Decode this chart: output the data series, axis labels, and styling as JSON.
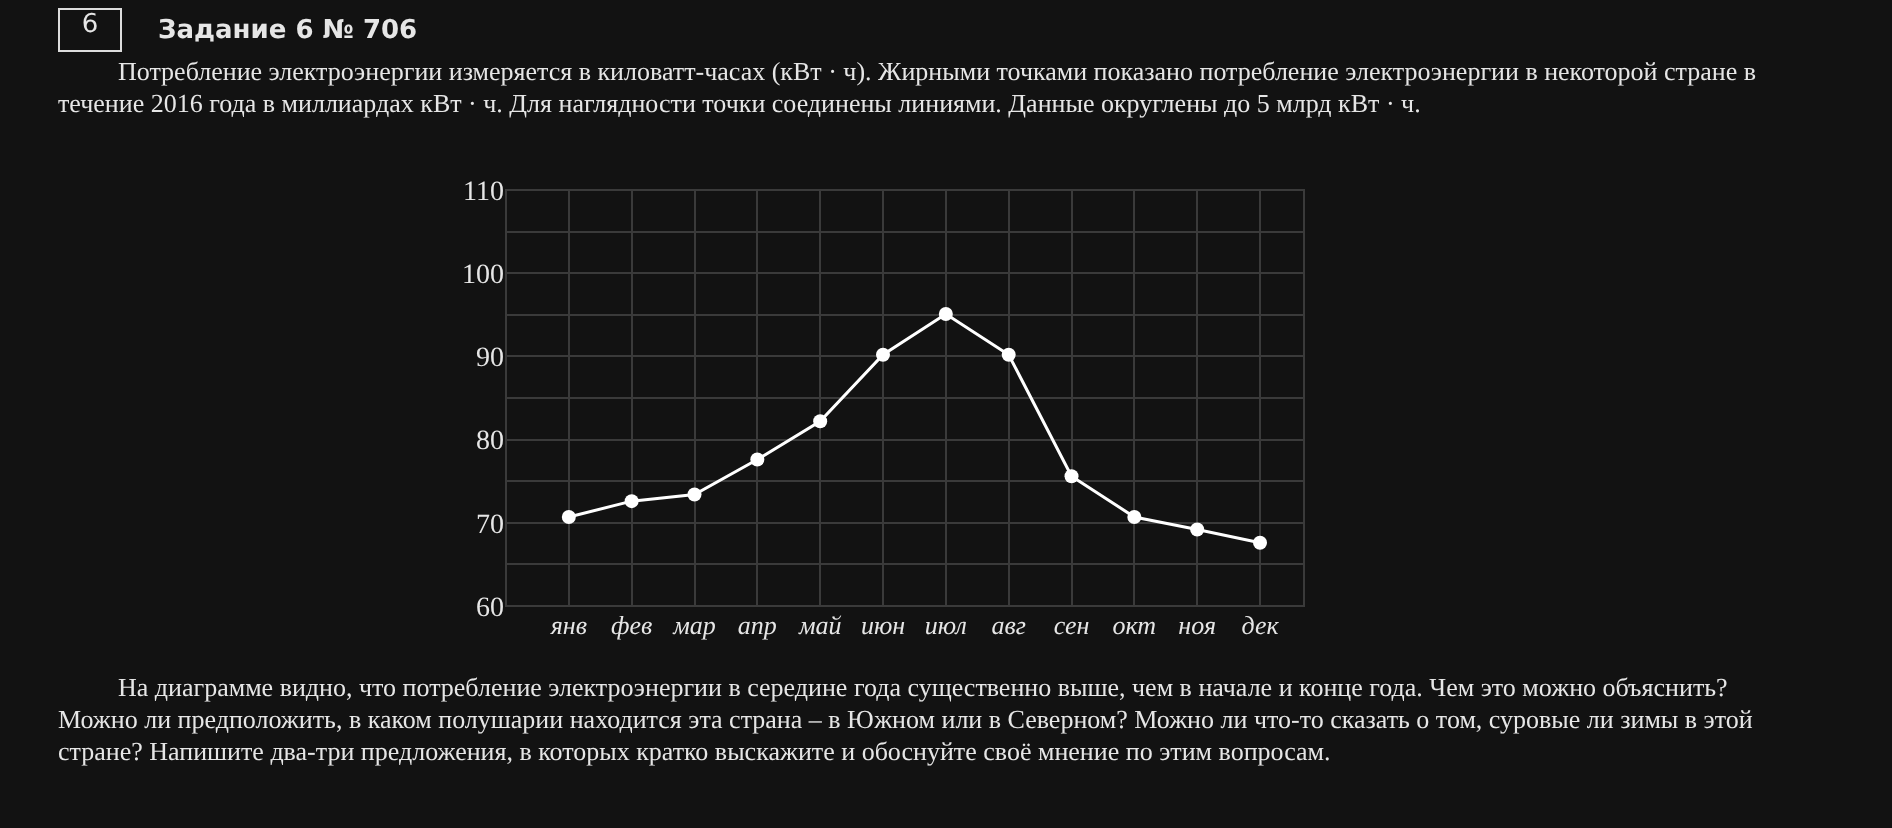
{
  "chart_data": {
    "type": "line",
    "title": "Задание 6 № 706",
    "subtitle": "Потребление электроэнергии измеряется в киловатт-часах (кВт · ч). Жирными точками показано потребление электроэнергии в некоторой стране в течение 2016 года в миллиардах кВт · ч. Для наглядности точки соединены линиями. Данные округлены до 5 млрд кВт · ч.",
    "annotations": [
      "6",
      "На диаграмме видно, что потребление электроэнергии в середине года существенно выше, чем в начале и конце года. Чем это можно объяснить? Можно ли предположить, в каком полушарии находится эта страна – в Южном или в Северном? Можно ли что-то сказать о том, суровые ли зимы в этой стране? Напишите два-три предложения, в которых кратко выскажите и обоснуйте своё мнение по этим вопросам."
    ],
    "categories": [
      "янв",
      "фев",
      "мар",
      "апр",
      "май",
      "июн",
      "июл",
      "авг",
      "сен",
      "окт",
      "ноя",
      "дек"
    ],
    "values": [
      70.7,
      72.6,
      73.4,
      77.6,
      82.2,
      90.2,
      95.1,
      90.2,
      75.6,
      70.7,
      69.2,
      67.6
    ],
    "color": "#ffffff",
    "marker": "circle",
    "line_style": "solid",
    "grid": true,
    "ylim": [
      60,
      110
    ],
    "yticks": [
      60,
      {
        "value": 65,
        "label": null
      },
      70,
      {
        "value": 75,
        "label": null
      },
      80,
      {
        "value": 85,
        "label": null
      },
      90,
      {
        "value": 95,
        "label": null
      },
      100,
      {
        "value": 105,
        "label": null
      },
      110
    ]
  }
}
